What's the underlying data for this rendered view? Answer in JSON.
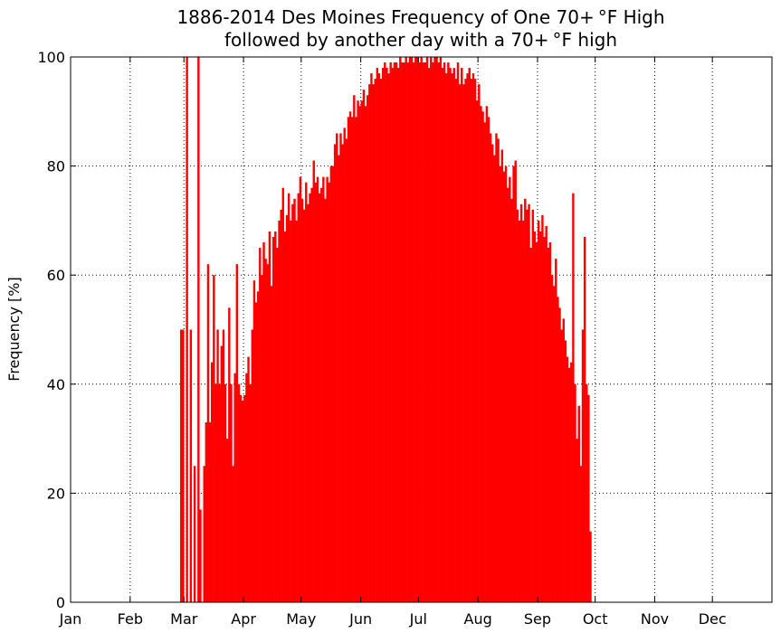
{
  "chart_data": {
    "type": "bar",
    "title": "1886-2014 Des Moines Frequency of One 70+ °F High",
    "subtitle": "followed by another day with a 70+ °F high",
    "xlabel": "",
    "ylabel": "Frequency [%]",
    "xlim": [
      1,
      366
    ],
    "ylim": [
      0,
      100
    ],
    "grid": true,
    "bar_color": "#ff0000",
    "x_tick_days": [
      1,
      32,
      60,
      91,
      121,
      152,
      182,
      213,
      244,
      274,
      305,
      335
    ],
    "x_tick_labels": [
      "Jan",
      "Feb",
      "Mar",
      "Apr",
      "May",
      "Jun",
      "Jul",
      "Aug",
      "Sep",
      "Oct",
      "Nov",
      "Dec"
    ],
    "y_ticks": [
      0,
      20,
      40,
      60,
      80,
      100
    ],
    "y_tick_labels": [
      "0",
      "20",
      "40",
      "60",
      "80",
      "100"
    ],
    "start_day": 58,
    "values": [
      50,
      50,
      0,
      100,
      0,
      50,
      0,
      25,
      0,
      100,
      17,
      0,
      25,
      33,
      62,
      33,
      44,
      60,
      40,
      50,
      40,
      47,
      50,
      40,
      30,
      54,
      40,
      25,
      42,
      62,
      40,
      38,
      37,
      38,
      42,
      45,
      40,
      50,
      59,
      55,
      57,
      65,
      60,
      66,
      63,
      62,
      68,
      58,
      67,
      68,
      65,
      70,
      72,
      76,
      68,
      71,
      75,
      70,
      73,
      74,
      70,
      75,
      78,
      74,
      72,
      77,
      73,
      75,
      76,
      81,
      77,
      78,
      75,
      76,
      78,
      74,
      78,
      77,
      80,
      80,
      84,
      86,
      82,
      86,
      84,
      87,
      85,
      89,
      90,
      89,
      93,
      89,
      92,
      91,
      92,
      94,
      91,
      93,
      95,
      97,
      95,
      96,
      98,
      97,
      96,
      98,
      99,
      98,
      97,
      99,
      98,
      99,
      99,
      98,
      100,
      99,
      99,
      100,
      99,
      100,
      100,
      99,
      100,
      100,
      99,
      100,
      99,
      99,
      100,
      98,
      100,
      99,
      100,
      100,
      99,
      100,
      98,
      99,
      97,
      99,
      98,
      97,
      98,
      96,
      99,
      95,
      98,
      95,
      96,
      97,
      98,
      96,
      97,
      96,
      92,
      95,
      91,
      90,
      88,
      91,
      89,
      86,
      84,
      82,
      86,
      85,
      80,
      83,
      79,
      80,
      76,
      78,
      74,
      80,
      81,
      72,
      70,
      73,
      70,
      74,
      72,
      73,
      65,
      72,
      68,
      66,
      70,
      68,
      71,
      67,
      69,
      65,
      66,
      60,
      58,
      63,
      56,
      54,
      50,
      52,
      48,
      45,
      43,
      44,
      75,
      40,
      30,
      36,
      25,
      50,
      67,
      40,
      38,
      13
    ]
  }
}
